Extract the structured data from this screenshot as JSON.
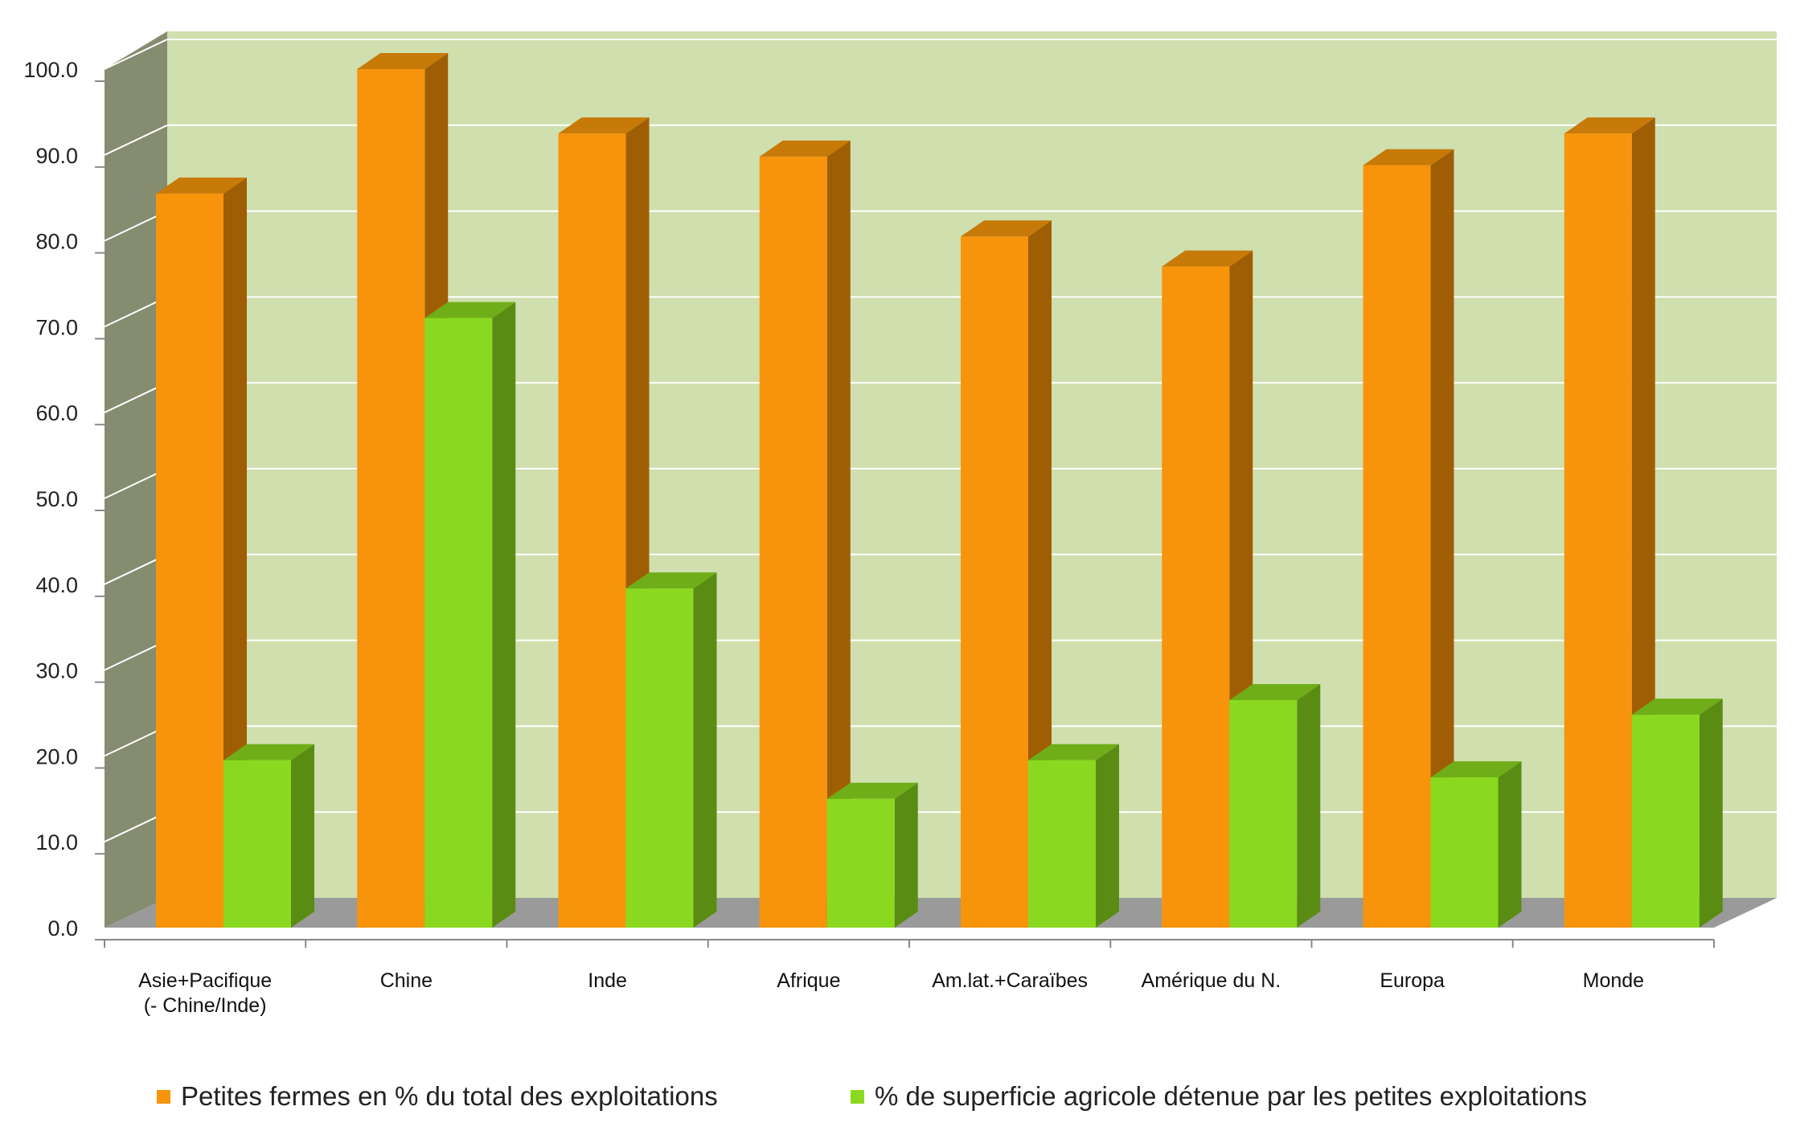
{
  "chart_data": {
    "type": "bar",
    "title": "",
    "xlabel": "",
    "ylabel": "",
    "ylim": [
      0,
      100
    ],
    "y_ticks": [
      "0.0",
      "10.0",
      "20.0",
      "30.0",
      "40.0",
      "50.0",
      "60.0",
      "70.0",
      "80.0",
      "90.0",
      "100.0"
    ],
    "categories": [
      [
        "Asie+Pacifique",
        "(- Chine/Inde)"
      ],
      [
        "Chine"
      ],
      [
        "Inde"
      ],
      [
        "Afrique"
      ],
      [
        "Am.lat.+Caraïbes"
      ],
      [
        "Amérique du N."
      ],
      [
        "Europa"
      ],
      [
        "Monde"
      ]
    ],
    "series": [
      {
        "name": "Petites fermes en % du total des exploitations",
        "values": [
          85.5,
          100,
          92.5,
          89.8,
          80.5,
          77,
          88.8,
          92.5
        ],
        "color": "#f7940c",
        "side_color": "#a05e04",
        "top_color": "#c77a08"
      },
      {
        "name": "% de superficie agricole détenue par les petites exploitations",
        "values": [
          19.5,
          71,
          39.5,
          15,
          19.5,
          26.5,
          17.5,
          24.8
        ],
        "color": "#8ad920",
        "side_color": "#5a8c14",
        "top_color": "#6fae18"
      }
    ],
    "grid": true,
    "legend_position": "bottom",
    "colors": {
      "back_wall": "#cfdfae",
      "side_wall": "#858c70",
      "floor": "#9a9a9a",
      "grid": "#ffffff"
    }
  }
}
